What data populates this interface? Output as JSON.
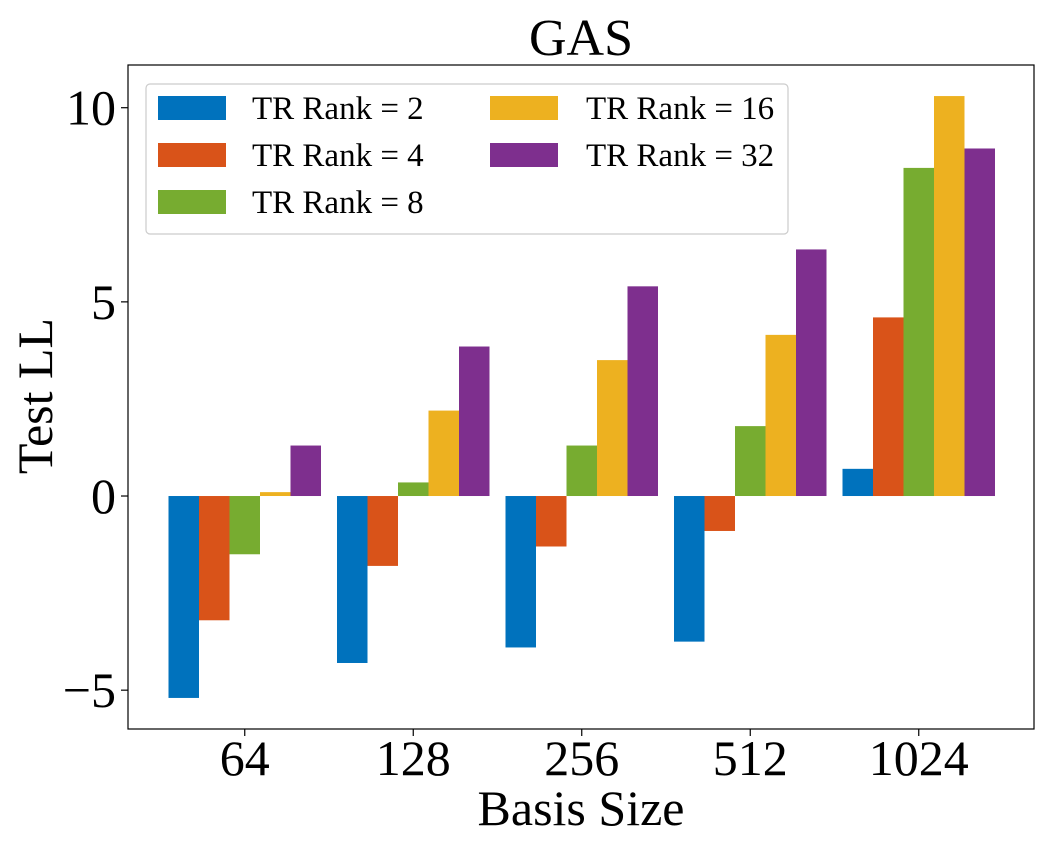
{
  "chart_data": {
    "type": "bar",
    "title": "GAS",
    "xlabel": "Basis Size",
    "ylabel": "Test LL",
    "categories": [
      "64",
      "128",
      "256",
      "512",
      "1024"
    ],
    "ylim": [
      -6.0,
      11.1
    ],
    "yticks": [
      {
        "value": 10,
        "label": "10"
      },
      {
        "value": 5,
        "label": "5"
      },
      {
        "value": 0,
        "label": "0"
      },
      {
        "value": -5,
        "label": "−5"
      }
    ],
    "grid": false,
    "legend_position": "top-left",
    "series": [
      {
        "name": "TR Rank = 2",
        "color": "#0072bd",
        "values": [
          -5.2,
          -4.3,
          -3.9,
          -3.75,
          0.7
        ]
      },
      {
        "name": "TR Rank = 4",
        "color": "#d95319",
        "values": [
          -3.2,
          -1.8,
          -1.3,
          -0.9,
          4.6
        ]
      },
      {
        "name": "TR Rank = 8",
        "color": "#77ac30",
        "values": [
          -1.5,
          0.35,
          1.3,
          1.8,
          8.45
        ]
      },
      {
        "name": "TR Rank = 16",
        "color": "#edb120",
        "values": [
          0.1,
          2.2,
          3.5,
          4.15,
          10.3
        ]
      },
      {
        "name": "TR Rank = 32",
        "color": "#7e2f8e",
        "values": [
          1.3,
          3.85,
          5.4,
          6.35,
          8.95
        ]
      }
    ]
  }
}
